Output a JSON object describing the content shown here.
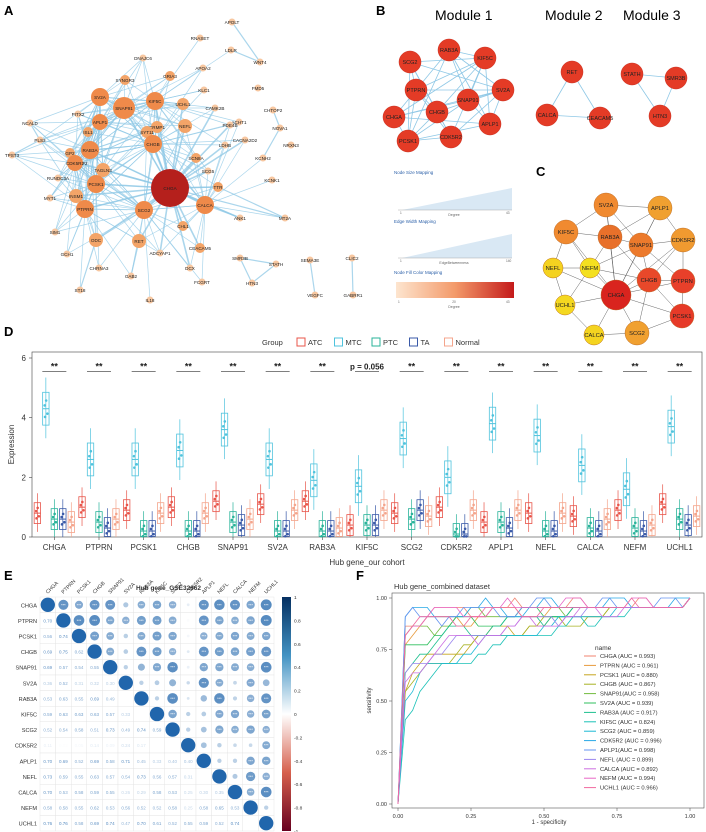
{
  "panels": {
    "A": "A",
    "B": "B",
    "C": "C",
    "D": "D",
    "E": "E",
    "F": "F"
  },
  "colors": {
    "atc": "#e8554a",
    "mtc": "#4fc3dd",
    "ptc": "#29b39a",
    "ta": "#3a5aa8",
    "normal": "#f4a58c",
    "edge": "#8fc8e6",
    "node_dark": "#b5201c",
    "node_mid": "#e8703a",
    "node_light": "#f7c7a0",
    "heat_pos": "#2166ac",
    "heat_neg": "#b2182b"
  },
  "network_a": {
    "nodes": [
      "APOLT",
      "DNAJC6",
      "RNASET",
      "WNT4",
      "GRIA3",
      "LDLR",
      "APOA2",
      "SYNGR3",
      "SV2A",
      "NRXN3",
      "CHTOP2",
      "NCALD",
      "PITX2",
      "SNAP91",
      "KIF5C",
      "KLC1",
      "FMD5",
      "ISL1",
      "APLP1",
      "UCHL1",
      "CAMK2B",
      "ACHT1",
      "NOVA1",
      "PLS3",
      "GP2",
      "NEFL",
      "PDE4B",
      "TPST3",
      "RIMBP2",
      "RAB3A",
      "TAGLN3",
      "CRMP1",
      "LDHB",
      "CACNA2D2",
      "RUNDC3A",
      "CDK5R2",
      "SYT11",
      "CHGB",
      "SCN8A",
      "KCNH2",
      "MYT1",
      "PCSK1",
      "CHGA",
      "KCNK1",
      "INSM1",
      "SCG5",
      "TTR",
      "PTPRN",
      "SCG2",
      "CALCA",
      "ANK1",
      "SIM1",
      "CHL1",
      "MT2A",
      "ODC",
      "RET",
      "CEACAM5",
      "GCH1",
      "ADCYAP1",
      "DCX",
      "FCGRT",
      "SMR3B",
      "STATH",
      "SEMA3E",
      "CLIC2",
      "CHRNA3",
      "GAB2",
      "HTN3",
      "VEGFC",
      "GABRR1",
      "ST18",
      "IL18"
    ],
    "caption": ""
  },
  "modules": {
    "titles": [
      "Module 1",
      "Module 2",
      "Module 3"
    ],
    "m1": [
      "SCG2",
      "RAB3A",
      "KIF5C",
      "PTPRN",
      "CHGA",
      "SV2A",
      "CHGB",
      "SNAP91",
      "PCSK1",
      "CDK5R2",
      "APLP1"
    ],
    "m2": [
      "RET",
      "CALCA",
      "CEACAM5"
    ],
    "m3": [
      "STATH",
      "SMR3B",
      "HTN3"
    ]
  },
  "legend_boxes": {
    "size": {
      "title": "Node Size Mapping",
      "axis": "Degree",
      "lo": "1",
      "hi": "43"
    },
    "width": {
      "title": "Edge Width Mapping",
      "axis": "EdgeBetweenness",
      "lo": "1",
      "hi": "140"
    },
    "fill": {
      "title": "Node Fill Color Mapping",
      "axis": "Degree",
      "lo": "1",
      "mid": "20",
      "hi": "43"
    }
  },
  "network_c": [
    "SV2A",
    "APLP1",
    "KIF5C",
    "RAB3A",
    "SNAP91",
    "CDK5R2",
    "NEFL",
    "NEFM",
    "CHGB",
    "PTPRN",
    "UCHL1",
    "CHGA",
    "PCSK1",
    "CALCA",
    "SCG2"
  ],
  "chart_data": [
    {
      "type": "box",
      "title": "",
      "legend_title": "Group",
      "groups": [
        "ATC",
        "MTC",
        "PTC",
        "TA",
        "Normal"
      ],
      "xlabel": "Hub gene_our cohort",
      "ylabel": "Expression",
      "ylim": [
        0,
        6
      ],
      "yticks": [
        0,
        2,
        4,
        6
      ],
      "categories": [
        "CHGA",
        "PTPRN",
        "PCSK1",
        "CHGB",
        "SNAP91",
        "SV2A",
        "RAB3A",
        "KIF5C",
        "SCG2",
        "CDK5R2",
        "APLP1",
        "NEFL",
        "CALCA",
        "NEFM",
        "UCHL1"
      ],
      "significance": [
        "**",
        "**",
        "**",
        "**",
        "**",
        "**",
        "**",
        "p = 0.056",
        "**",
        "**",
        "**",
        "**",
        "**",
        "**",
        "**"
      ],
      "medians": [
        [
          0.8,
          4.3,
          0.6,
          0.6,
          0.5
        ],
        [
          1.0,
          2.6,
          0.5,
          0.3,
          0.6
        ],
        [
          0.9,
          2.6,
          0.2,
          0.2,
          0.8
        ],
        [
          1.0,
          2.9,
          0.2,
          0.2,
          0.8
        ],
        [
          1.2,
          3.6,
          0.5,
          0.4,
          0.6
        ],
        [
          1.1,
          2.6,
          0.2,
          0.2,
          0.9
        ],
        [
          1.2,
          1.9,
          0.2,
          0.2,
          0.3
        ],
        [
          0.4,
          1.7,
          0.4,
          0.4,
          0.9
        ],
        [
          0.8,
          3.3,
          0.6,
          0.9,
          0.7
        ],
        [
          1.0,
          2.0,
          0.1,
          0.1,
          0.9
        ],
        [
          0.5,
          3.8,
          0.5,
          0.3,
          0.9
        ],
        [
          0.8,
          3.4,
          0.2,
          0.2,
          0.8
        ],
        [
          0.7,
          2.4,
          0.3,
          0.2,
          0.6
        ],
        [
          0.9,
          1.6,
          0.3,
          0.2,
          0.4
        ],
        [
          1.1,
          3.7,
          0.6,
          0.4,
          0.7
        ]
      ]
    },
    {
      "type": "heatmap",
      "title": "Hub gene_GSE32662",
      "genes": [
        "CHGA",
        "PTPRN",
        "PCSK1",
        "CHGB",
        "SNAP91",
        "SV2A",
        "RAB3A",
        "KIF5C",
        "SCG2",
        "CDK5R2",
        "APLP1",
        "NEFL",
        "CALCA",
        "NEFM",
        "UCHL1"
      ],
      "scale_ticks": [
        "1",
        "0.8",
        "0.6",
        "0.4",
        "0.2",
        "0",
        "-0.2",
        "-0.4",
        "-0.6",
        "-0.8",
        "-1"
      ],
      "lower": [
        [],
        [
          0.7
        ],
        [
          0.56,
          0.74
        ],
        [
          0.69,
          0.75,
          0.62
        ],
        [
          0.69,
          0.57,
          0.54,
          0.55
        ],
        [
          0.36,
          0.52,
          0.31,
          0.32,
          0.3
        ],
        [
          0.53,
          0.63,
          0.55,
          0.69,
          0.49
        ],
        [
          0.59,
          0.63,
          0.63,
          0.63,
          0.57,
          0.33
        ],
        [
          0.52,
          0.54,
          0.58,
          0.51,
          0.73,
          0.49,
          0.74,
          0.59
        ],
        [
          0.11,
          0.02,
          0.05,
          0.14,
          0.09,
          0.24,
          0.17
        ],
        [
          0.7,
          0.69,
          0.52,
          0.69,
          0.58,
          0.71,
          0.45,
          0.33,
          0.4,
          0.4
        ],
        [
          0.73,
          0.59,
          0.55,
          0.63,
          0.57,
          0.54,
          0.73,
          0.56,
          0.57,
          0.31
        ],
        [
          0.7,
          0.53,
          0.58,
          0.59,
          0.55,
          0.26,
          0.29,
          0.58,
          0.53,
          0.25,
          0.3,
          0.35
        ],
        [
          0.58,
          0.58,
          0.55,
          0.62,
          0.53,
          0.56,
          0.52,
          0.52,
          0.58,
          0.25,
          0.58,
          0.65,
          0.53
        ],
        [
          0.76,
          0.76,
          0.58,
          0.69,
          0.74,
          0.47,
          0.7,
          0.61,
          0.52,
          0.55,
          0.59,
          0.52,
          0.74
        ]
      ]
    },
    {
      "type": "line",
      "title": "Hub gene_combined dataset",
      "xlabel": "1 - specificity",
      "ylabel": "sensitivity",
      "xlim": [
        0,
        1
      ],
      "ylim": [
        0,
        1
      ],
      "ticks": [
        "0.00",
        "0.25",
        "0.50",
        "0.75",
        "1.00"
      ],
      "legend_title": "name",
      "series": [
        {
          "name": "CHGA (AUC = 0.993)",
          "auc": 0.993,
          "color": "#f0836f"
        },
        {
          "name": "PTPRN (AUC = 0.961)",
          "auc": 0.961,
          "color": "#e79a3c"
        },
        {
          "name": "PCSK1 (AUC = 0.880)",
          "auc": 0.88,
          "color": "#c6a61e"
        },
        {
          "name": "CHGB (AUC = 0.867)",
          "auc": 0.867,
          "color": "#a7b223"
        },
        {
          "name": "SNAP91(AUC = 0.958)",
          "auc": 0.958,
          "color": "#72bb3e"
        },
        {
          "name": "SV2A (AUC = 0.939)",
          "auc": 0.939,
          "color": "#2fbf5e"
        },
        {
          "name": "RAB3A (AUC = 0.917)",
          "auc": 0.917,
          "color": "#1dc08f"
        },
        {
          "name": "KIF5C (AUC = 0.824)",
          "auc": 0.824,
          "color": "#1bc1b7"
        },
        {
          "name": "SCG2 (AUC = 0.859)",
          "auc": 0.859,
          "color": "#1bb9d4"
        },
        {
          "name": "CDK5R2 (AUC = 0.996)",
          "auc": 0.996,
          "color": "#26a8e6"
        },
        {
          "name": "APLP1(AUC = 0.998)",
          "auc": 0.998,
          "color": "#6594f0"
        },
        {
          "name": "NEFL (AUC = 0.899)",
          "auc": 0.899,
          "color": "#9a85ee"
        },
        {
          "name": "CALCA (AUC = 0.892)",
          "auc": 0.892,
          "color": "#cc6fe2"
        },
        {
          "name": "NEFM (AUC = 0.994)",
          "auc": 0.994,
          "color": "#e866c6"
        },
        {
          "name": "UCHL1 (AUC = 0.966)",
          "auc": 0.966,
          "color": "#f06a9e"
        }
      ]
    }
  ]
}
